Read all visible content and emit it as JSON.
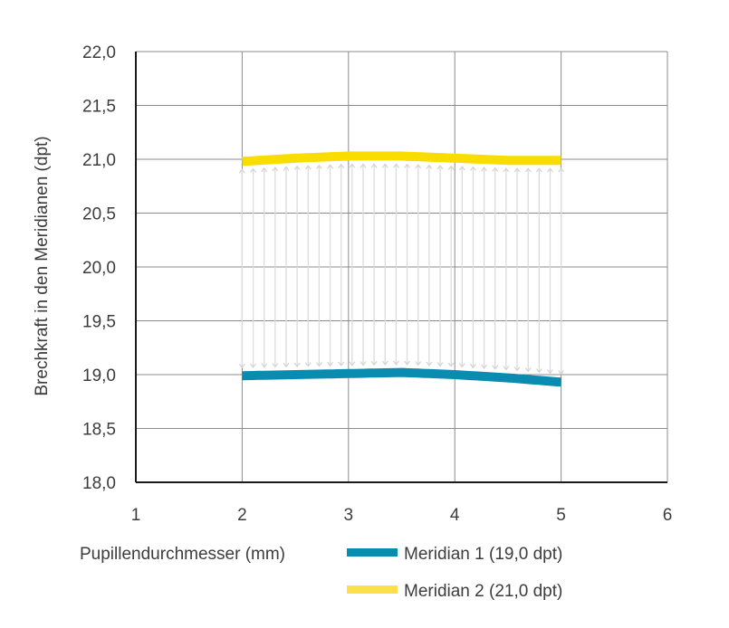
{
  "chart_data": {
    "type": "line",
    "xlabel": "Pupillendurchmesser (mm)",
    "ylabel": "Brechkraft in den Meridianen (dpt)",
    "xlim": [
      1,
      6
    ],
    "ylim": [
      18.0,
      22.0
    ],
    "x_ticks": [
      1,
      2,
      3,
      4,
      5,
      6
    ],
    "x_tick_labels": [
      "1",
      "2",
      "3",
      "4",
      "5",
      "6"
    ],
    "y_ticks": [
      18.0,
      18.5,
      19.0,
      19.5,
      20.0,
      20.5,
      21.0,
      21.5,
      22.0
    ],
    "y_tick_labels": [
      "18,0",
      "18,5",
      "19,0",
      "19,5",
      "20,0",
      "20,5",
      "21,0",
      "21,5",
      "22,0"
    ],
    "grid": true,
    "legend_position": "bottom",
    "series": [
      {
        "name": "Meridian 1 (19,0 dpt)",
        "color": "#0a8bb0",
        "x": [
          2.0,
          2.5,
          3.0,
          3.5,
          4.0,
          4.5,
          5.0
        ],
        "y": [
          18.99,
          19.0,
          19.01,
          19.02,
          19.0,
          18.97,
          18.93
        ]
      },
      {
        "name": "Meridian 2 (21,0 dpt)",
        "color": "#f9dc00",
        "x": [
          2.0,
          2.5,
          3.0,
          3.5,
          4.0,
          4.5,
          5.0
        ],
        "y": [
          20.98,
          21.01,
          21.03,
          21.03,
          21.01,
          20.99,
          20.99
        ]
      }
    ],
    "annotation_arrows": {
      "color": "#dcdcdc",
      "x_start": 2.0,
      "x_end": 5.0,
      "count": 30,
      "direction": "double-headed between Meridian 1 and Meridian 2"
    },
    "legend_colors": {
      "meridian_1": "#0a8bb0",
      "meridian_2": "#fbe04a"
    }
  }
}
